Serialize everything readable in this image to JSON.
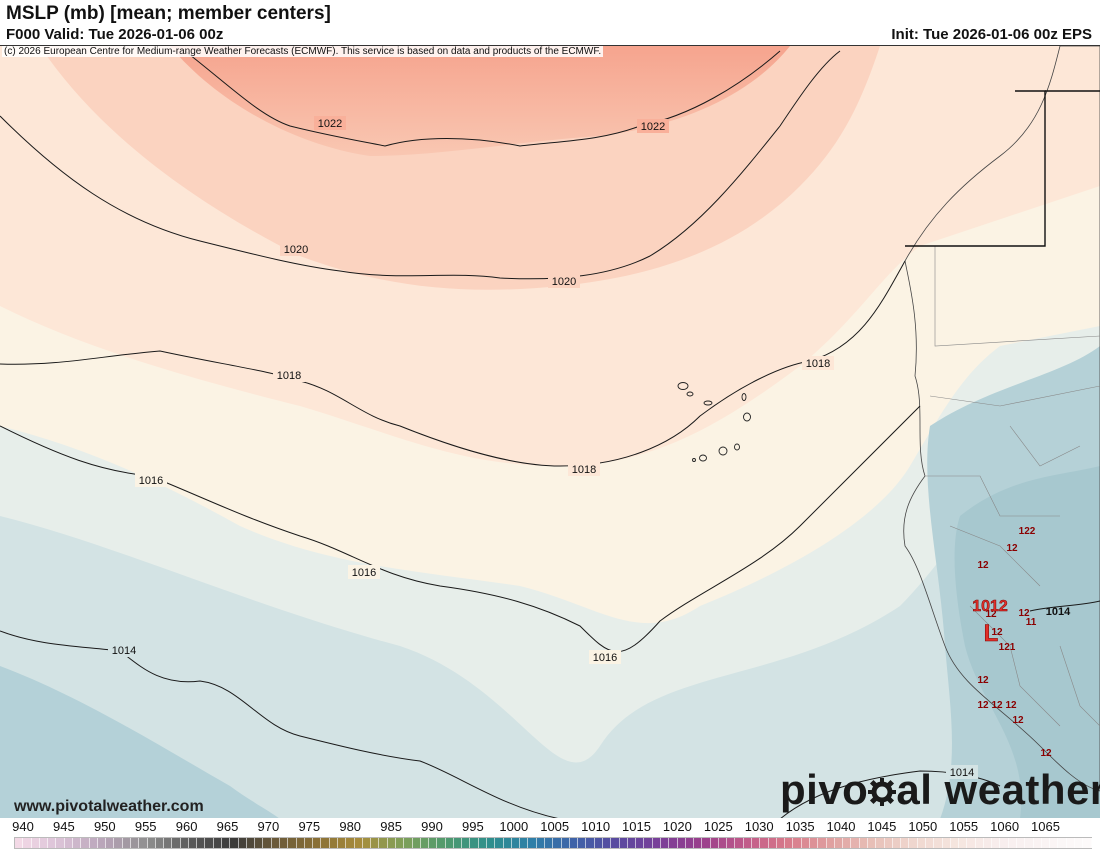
{
  "header": {
    "title": "MSLP (mb) [mean; member centers]",
    "valid": "F000 Valid: Tue 2026-01-06 00z",
    "init": "Init: Tue 2026-01-06 00z EPS"
  },
  "copyright": "(c) 2026 European Centre for Medium-range Weather Forecasts (ECMWF). This service is based on data and products of the ECMWF.",
  "footer": {
    "site": "www.pivotalweather.com",
    "brand_left": "pivo",
    "brand_right": "al weather"
  },
  "map": {
    "contours": [
      {
        "label": "1022",
        "count": 2
      },
      {
        "label": "1020",
        "count": 2
      },
      {
        "label": "1018",
        "count": 3
      },
      {
        "label": "1016",
        "count": 3
      },
      {
        "label": "1014",
        "count": 3
      }
    ],
    "low_center": {
      "value": "1012",
      "symbol": "L"
    },
    "member_labels": [
      "122",
      "12",
      "12",
      "12",
      "12",
      "11",
      "12",
      "121",
      "12",
      "12",
      "12",
      "12",
      "12",
      "12",
      "1014"
    ]
  },
  "colorbar": {
    "labels": [
      "940",
      "945",
      "950",
      "955",
      "960",
      "965",
      "970",
      "975",
      "980",
      "985",
      "990",
      "995",
      "1000",
      "1005",
      "1010",
      "1015",
      "1020",
      "1025",
      "1030",
      "1035",
      "1040",
      "1045",
      "1050",
      "1055",
      "1060",
      "1065"
    ],
    "colors": [
      "#f3d9e6",
      "#d9c1d6",
      "#b8a4b8",
      "#8f8f8f",
      "#5b5b5b",
      "#3a3a3a",
      "#6b5a3a",
      "#8a7036",
      "#a88d3c",
      "#7fa05a",
      "#4f9a6e",
      "#2f8f8c",
      "#2f7fa8",
      "#3f63a8",
      "#5a4aa0",
      "#7a3f98",
      "#9a3f8c",
      "#c05a8a",
      "#d87a8a",
      "#e0a0a0",
      "#e8c0b8",
      "#f0d8d0",
      "#f6e6e0",
      "#f8eeee",
      "#faf4f4",
      "#fdfafa"
    ]
  }
}
